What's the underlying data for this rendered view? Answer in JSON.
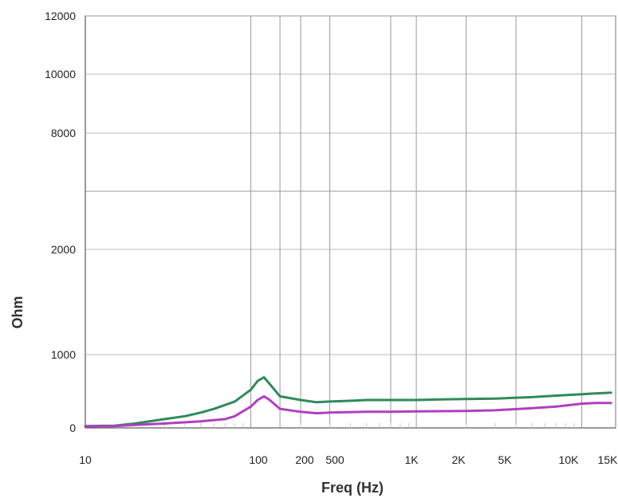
{
  "chart_data": {
    "type": "line",
    "xlabel": "Freq (Hz)",
    "ylabel": "Ohm",
    "x_scale": "log",
    "x_ticks": [
      {
        "value": 10,
        "label": "10"
      },
      {
        "value": 100,
        "label": "100"
      },
      {
        "value": 200,
        "label": "200"
      },
      {
        "value": 500,
        "label": "500"
      },
      {
        "value": 1000,
        "label": "1K"
      },
      {
        "value": 2000,
        "label": "2K"
      },
      {
        "value": 5000,
        "label": "5K"
      },
      {
        "value": 10000,
        "label": "10K"
      },
      {
        "value": 15000,
        "label": "15K"
      }
    ],
    "y_ticks": [
      {
        "value": 0,
        "label": "0"
      },
      {
        "value": 1000,
        "label": "1000"
      },
      {
        "value": 2000,
        "label": "2000"
      },
      {
        "value": 8000,
        "label": "8000"
      },
      {
        "value": 10000,
        "label": "10000"
      },
      {
        "value": 12000,
        "label": "12000"
      }
    ],
    "grid": true,
    "series": [
      {
        "color": "#2e8b5a",
        "points": [
          [
            10,
            25
          ],
          [
            15,
            30
          ],
          [
            20,
            60
          ],
          [
            30,
            120
          ],
          [
            40,
            160
          ],
          [
            50,
            210
          ],
          [
            60,
            260
          ],
          [
            80,
            360
          ],
          [
            100,
            520
          ],
          [
            110,
            640
          ],
          [
            120,
            690
          ],
          [
            130,
            600
          ],
          [
            150,
            430
          ],
          [
            200,
            380
          ],
          [
            250,
            350
          ],
          [
            300,
            360
          ],
          [
            400,
            370
          ],
          [
            500,
            380
          ],
          [
            700,
            380
          ],
          [
            1000,
            380
          ],
          [
            1500,
            390
          ],
          [
            2000,
            395
          ],
          [
            3000,
            400
          ],
          [
            5000,
            420
          ],
          [
            7000,
            440
          ],
          [
            10000,
            460
          ],
          [
            12000,
            470
          ],
          [
            15000,
            480
          ]
        ]
      },
      {
        "color": "#b03fc0",
        "points": [
          [
            10,
            20
          ],
          [
            15,
            25
          ],
          [
            20,
            40
          ],
          [
            30,
            60
          ],
          [
            50,
            90
          ],
          [
            70,
            120
          ],
          [
            80,
            160
          ],
          [
            100,
            290
          ],
          [
            110,
            380
          ],
          [
            120,
            430
          ],
          [
            130,
            380
          ],
          [
            150,
            260
          ],
          [
            200,
            220
          ],
          [
            250,
            200
          ],
          [
            300,
            210
          ],
          [
            500,
            220
          ],
          [
            700,
            220
          ],
          [
            1000,
            225
          ],
          [
            2000,
            230
          ],
          [
            3000,
            240
          ],
          [
            5000,
            270
          ],
          [
            7000,
            290
          ],
          [
            10000,
            330
          ],
          [
            12000,
            340
          ],
          [
            15000,
            340
          ]
        ]
      }
    ]
  }
}
